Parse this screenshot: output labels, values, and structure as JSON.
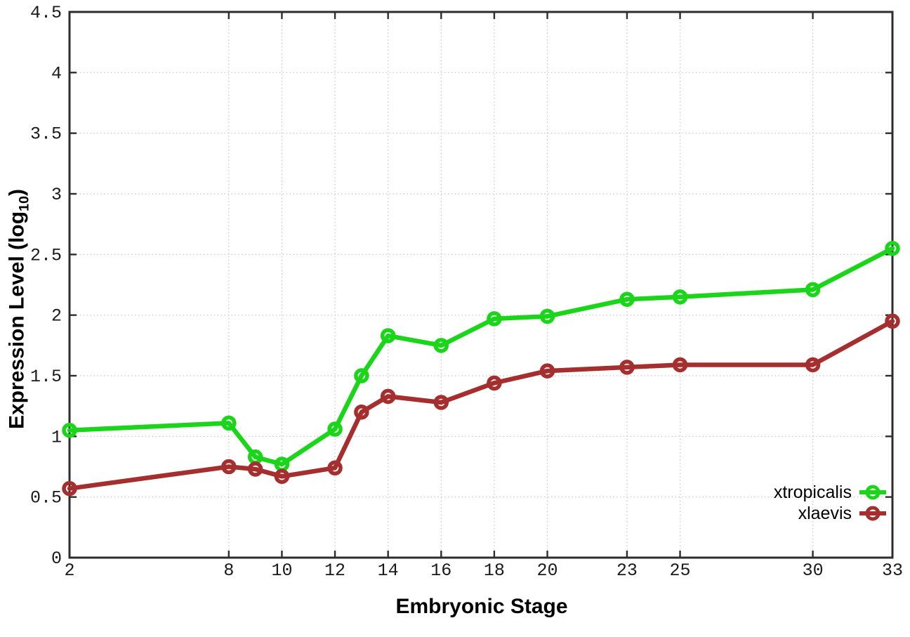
{
  "chart_data": {
    "type": "line",
    "xlabel": "Embryonic Stage",
    "ylabel": {
      "prefix": "Expression Level (log",
      "sub": "10",
      "suffix": ")"
    },
    "xlim": [
      2,
      33
    ],
    "ylim": [
      0,
      4.5
    ],
    "grid": true,
    "legend_position": "bottom-right",
    "axis_color": "#2d2d2d",
    "grid_color": "#c4c4c4",
    "tick_label_color": "#1a1a1a",
    "x": [
      2,
      8,
      9,
      10,
      12,
      13,
      14,
      16,
      18,
      20,
      23,
      25,
      30,
      33
    ],
    "x_ticks": [
      {
        "v": 2,
        "label": "2"
      },
      {
        "v": 8,
        "label": "8"
      },
      {
        "v": 10,
        "label": "10"
      },
      {
        "v": 12,
        "label": "12"
      },
      {
        "v": 14,
        "label": "14"
      },
      {
        "v": 16,
        "label": "16"
      },
      {
        "v": 18,
        "label": "18"
      },
      {
        "v": 20,
        "label": "20"
      },
      {
        "v": 23,
        "label": "23"
      },
      {
        "v": 25,
        "label": "25"
      },
      {
        "v": 30,
        "label": "30"
      },
      {
        "v": 33,
        "label": "33"
      }
    ],
    "y_ticks": [
      {
        "v": 0,
        "label": "0"
      },
      {
        "v": 0.5,
        "label": "0.5"
      },
      {
        "v": 1,
        "label": "1"
      },
      {
        "v": 1.5,
        "label": "1.5"
      },
      {
        "v": 2,
        "label": "2"
      },
      {
        "v": 2.5,
        "label": "2.5"
      },
      {
        "v": 3,
        "label": "3"
      },
      {
        "v": 3.5,
        "label": "3.5"
      },
      {
        "v": 4,
        "label": "4"
      },
      {
        "v": 4.5,
        "label": "4.5"
      }
    ],
    "series": [
      {
        "name": "xtropicalis",
        "color": "#1bd51b",
        "values": [
          1.05,
          1.11,
          0.83,
          0.77,
          1.06,
          1.5,
          1.83,
          1.75,
          1.97,
          1.99,
          2.13,
          2.15,
          2.21,
          2.55
        ]
      },
      {
        "name": "xlaevis",
        "color": "#a52e2e",
        "values": [
          0.57,
          0.75,
          0.73,
          0.67,
          0.74,
          1.2,
          1.33,
          1.28,
          1.44,
          1.54,
          1.57,
          1.59,
          1.59,
          1.95
        ]
      }
    ]
  }
}
